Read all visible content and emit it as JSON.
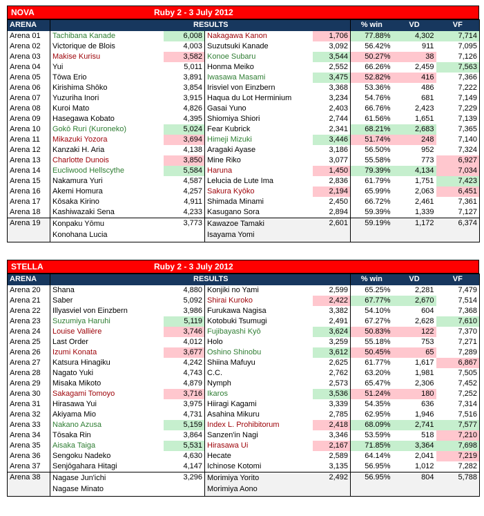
{
  "nova": {
    "label": "NOVA",
    "title": "Ruby 2 - 3 July 2012",
    "headers": {
      "arena": "ARENA",
      "results": "RESULTS",
      "win": "% win",
      "vd": "VD",
      "vf": "VF"
    },
    "rows": [
      {
        "arena": "Arena 01",
        "p1": "Tachibana Kanade",
        "s1": "6,008",
        "p2": "Nakagawa Kanon",
        "s2": "1,706",
        "win": "77.88%",
        "vd": "4,302",
        "vf": "7,714"
      },
      {
        "arena": "Arena 02",
        "p1": "Victorique de Blois",
        "s1": "4,003",
        "p2": "Suzutsuki Kanade",
        "s2": "3,092",
        "win": "56.42%",
        "vd": "911",
        "vf": "7,095"
      },
      {
        "arena": "Arena 03",
        "p1": "Makise Kurisu",
        "s1": "3,582",
        "p2": "Konoe Subaru",
        "s2": "3,544",
        "win": "50.27%",
        "vd": "38",
        "vf": "7,126"
      },
      {
        "arena": "Arena 04",
        "p1": "Yui",
        "s1": "5,011",
        "p2": "Honma Meiko",
        "s2": "2,552",
        "win": "66.26%",
        "vd": "2,459",
        "vf": "7,563"
      },
      {
        "arena": "Arena 05",
        "p1": "Tōwa Erio",
        "s1": "3,891",
        "p2": "Iwasawa Masami",
        "s2": "3,475",
        "win": "52.82%",
        "vd": "416",
        "vf": "7,366"
      },
      {
        "arena": "Arena 06",
        "p1": "Kirishima Shōko",
        "s1": "3,854",
        "p2": "Irisviel von Einzbern",
        "s2": "3,368",
        "win": "53.36%",
        "vd": "486",
        "vf": "7,222"
      },
      {
        "arena": "Arena 07",
        "p1": "Yuzuriha Inori",
        "s1": "3,915",
        "p2": "Haqua du Lot Herminium",
        "s2": "3,234",
        "win": "54.76%",
        "vd": "681",
        "vf": "7,149"
      },
      {
        "arena": "Arena 08",
        "p1": "Kuroi Mato",
        "s1": "4,826",
        "p2": "Gasai Yuno",
        "s2": "2,403",
        "win": "66.76%",
        "vd": "2,423",
        "vf": "7,229"
      },
      {
        "arena": "Arena 09",
        "p1": "Hasegawa Kobato",
        "s1": "4,395",
        "p2": "Shiomiya Shiori",
        "s2": "2,744",
        "win": "61.56%",
        "vd": "1,651",
        "vf": "7,139"
      },
      {
        "arena": "Arena 10",
        "p1": "Gokō Ruri (Kuroneko)",
        "s1": "5,024",
        "p2": "Fear Kubrick",
        "s2": "2,341",
        "win": "68.21%",
        "vd": "2,683",
        "vf": "7,365"
      },
      {
        "arena": "Arena 11",
        "p1": "Mikazuki Yozora",
        "s1": "3,694",
        "p2": "Himeji Mizuki",
        "s2": "3,446",
        "win": "51.74%",
        "vd": "248",
        "vf": "7,140"
      },
      {
        "arena": "Arena 12",
        "p1": "Kanzaki H. Aria",
        "s1": "4,138",
        "p2": "Aragaki Ayase",
        "s2": "3,186",
        "win": "56.50%",
        "vd": "952",
        "vf": "7,324"
      },
      {
        "arena": "Arena 13",
        "p1": "Charlotte Dunois",
        "s1": "3,850",
        "p2": "Mine Riko",
        "s2": "3,077",
        "win": "55.58%",
        "vd": "773",
        "vf": "6,927"
      },
      {
        "arena": "Arena 14",
        "p1": "Eucliwood Hellscythe",
        "s1": "5,584",
        "p2": "Haruna",
        "s2": "1,450",
        "win": "79.39%",
        "vd": "4,134",
        "vf": "7,034"
      },
      {
        "arena": "Arena 15",
        "p1": "Nakamura Yuri",
        "s1": "4,587",
        "p2": "Lelucia de Lute Ima",
        "s2": "2,836",
        "win": "61.79%",
        "vd": "1,751",
        "vf": "7,423"
      },
      {
        "arena": "Arena 16",
        "p1": "Akemi Homura",
        "s1": "4,257",
        "p2": "Sakura Kyōko",
        "s2": "2,194",
        "win": "65.99%",
        "vd": "2,063",
        "vf": "6,451"
      },
      {
        "arena": "Arena 17",
        "p1": "Kōsaka Kirino",
        "s1": "4,911",
        "p2": "Shimada Minami",
        "s2": "2,450",
        "win": "66.72%",
        "vd": "2,461",
        "vf": "7,361"
      },
      {
        "arena": "Arena 18",
        "p1": "Kashiwazaki Sena",
        "s1": "4,233",
        "p2": "Kasugano Sora",
        "s2": "2,894",
        "win": "59.39%",
        "vd": "1,339",
        "vf": "7,127"
      }
    ],
    "last": {
      "arena": "Arena 19",
      "p1a": "Konpaku Yōmu",
      "p1b": "Konohana Lucia",
      "s1": "3,773",
      "p2a": "Kawazoe Tamaki",
      "p2b": "Isayama Yomi",
      "s2": "2,601",
      "win": "59.19%",
      "vd": "1,172",
      "vf": "6,374"
    }
  },
  "stella": {
    "label": "STELLA",
    "title": "Ruby 2 - 3 July 2012",
    "headers": {
      "arena": "ARENA",
      "results": "RESULTS",
      "win": "% win",
      "vd": "VD",
      "vf": "VF"
    },
    "rows": [
      {
        "arena": "Arena 20",
        "p1": "Shana",
        "s1": "4,880",
        "p2": "Konjiki no Yami",
        "s2": "2,599",
        "win": "65.25%",
        "vd": "2,281",
        "vf": "7,479"
      },
      {
        "arena": "Arena 21",
        "p1": "Saber",
        "s1": "5,092",
        "p2": "Shirai Kuroko",
        "s2": "2,422",
        "win": "67.77%",
        "vd": "2,670",
        "vf": "7,514"
      },
      {
        "arena": "Arena 22",
        "p1": "Illyasviel von Einzbern",
        "s1": "3,986",
        "p2": "Furukawa Nagisa",
        "s2": "3,382",
        "win": "54.10%",
        "vd": "604",
        "vf": "7,368"
      },
      {
        "arena": "Arena 23",
        "p1": "Suzumiya Haruhi",
        "s1": "5,119",
        "p2": "Kotobuki Tsumugi",
        "s2": "2,491",
        "win": "67.27%",
        "vd": "2,628",
        "vf": "7,610"
      },
      {
        "arena": "Arena 24",
        "p1": "Louise Vallière",
        "s1": "3,746",
        "p2": "Fujibayashi Kyō",
        "s2": "3,624",
        "win": "50.83%",
        "vd": "122",
        "vf": "7,370"
      },
      {
        "arena": "Arena 25",
        "p1": "Last Order",
        "s1": "4,012",
        "p2": "Holo",
        "s2": "3,259",
        "win": "55.18%",
        "vd": "753",
        "vf": "7,271"
      },
      {
        "arena": "Arena 26",
        "p1": "Izumi Konata",
        "s1": "3,677",
        "p2": "Oshino Shinobu",
        "s2": "3,612",
        "win": "50.45%",
        "vd": "65",
        "vf": "7,289"
      },
      {
        "arena": "Arena 27",
        "p1": "Katsura Hinagiku",
        "s1": "4,242",
        "p2": "Shiina Mafuyu",
        "s2": "2,625",
        "win": "61.77%",
        "vd": "1,617",
        "vf": "6,867"
      },
      {
        "arena": "Arena 28",
        "p1": "Nagato Yuki",
        "s1": "4,743",
        "p2": "C.C.",
        "s2": "2,762",
        "win": "63.20%",
        "vd": "1,981",
        "vf": "7,505"
      },
      {
        "arena": "Arena 29",
        "p1": "Misaka Mikoto",
        "s1": "4,879",
        "p2": "Nymph",
        "s2": "2,573",
        "win": "65.47%",
        "vd": "2,306",
        "vf": "7,452"
      },
      {
        "arena": "Arena 30",
        "p1": "Sakagami Tomoyo",
        "s1": "3,716",
        "p2": "Ikaros",
        "s2": "3,536",
        "win": "51.24%",
        "vd": "180",
        "vf": "7,252"
      },
      {
        "arena": "Arena 31",
        "p1": "Hirasawa Yui",
        "s1": "3,975",
        "p2": "Hiiragi Kagami",
        "s2": "3,339",
        "win": "54.35%",
        "vd": "636",
        "vf": "7,314"
      },
      {
        "arena": "Arena 32",
        "p1": "Akiyama Mio",
        "s1": "4,731",
        "p2": "Asahina Mikuru",
        "s2": "2,785",
        "win": "62.95%",
        "vd": "1,946",
        "vf": "7,516"
      },
      {
        "arena": "Arena 33",
        "p1": "Nakano Azusa",
        "s1": "5,159",
        "p2": "Index L. Prohibitorum",
        "s2": "2,418",
        "win": "68.09%",
        "vd": "2,741",
        "vf": "7,577"
      },
      {
        "arena": "Arena 34",
        "p1": "Tōsaka Rin",
        "s1": "3,864",
        "p2": "Sanzen'in Nagi",
        "s2": "3,346",
        "win": "53.59%",
        "vd": "518",
        "vf": "7,210"
      },
      {
        "arena": "Arena 35",
        "p1": "Aisaka Taiga",
        "s1": "5,531",
        "p2": "Hirasawa Ui",
        "s2": "2,167",
        "win": "71.85%",
        "vd": "3,364",
        "vf": "7,698"
      },
      {
        "arena": "Arena 36",
        "p1": "Sengoku Nadeko",
        "s1": "4,630",
        "p2": "Hecate",
        "s2": "2,589",
        "win": "64.14%",
        "vd": "2,041",
        "vf": "7,219"
      },
      {
        "arena": "Arena 37",
        "p1": "Senjōgahara Hitagi",
        "s1": "4,147",
        "p2": "Ichinose Kotomi",
        "s2": "3,135",
        "win": "56.95%",
        "vd": "1,012",
        "vf": "7,282"
      }
    ],
    "last": {
      "arena": "Arena 38",
      "p1a": "Nagase Jun'ichi",
      "p1b": "Nagase Minato",
      "s1": "3,296",
      "p2a": "Morimiya Yorito",
      "p2b": "Morimiya Aono",
      "s2": "2,492",
      "win": "56.95%",
      "vd": "804",
      "vf": "5,788"
    }
  },
  "styles": {
    "nova": [
      {
        "p1": "g",
        "p2": "r",
        "mid": "g",
        "vf": "g"
      },
      {},
      {
        "p1": "r",
        "p2": "g",
        "mid": "r"
      },
      {
        "vf": "g"
      },
      {
        "p2": "g",
        "mid": "r"
      },
      {},
      {},
      {},
      {},
      {
        "p1": "g",
        "mid": "g"
      },
      {
        "p1": "r",
        "p2": "g",
        "mid": "r"
      },
      {},
      {
        "p1": "r",
        "vf": "r"
      },
      {
        "p1": "g",
        "p2": "r",
        "mid": "g",
        "vf": "r"
      },
      {
        "vf": "g"
      },
      {
        "p2": "r",
        "vf": "r"
      },
      {},
      {}
    ],
    "stella": [
      {},
      {
        "p2": "r",
        "mid": "g"
      },
      {},
      {
        "p1": "g",
        "vf": "g"
      },
      {
        "p1": "r",
        "p2": "g",
        "mid": "r"
      },
      {},
      {
        "p1": "r",
        "p2": "g",
        "mid": "r"
      },
      {
        "vf": "r"
      },
      {},
      {},
      {
        "p1": "r",
        "p2": "g",
        "mid": "r"
      },
      {},
      {},
      {
        "p1": "g",
        "p2": "r",
        "mid": "g",
        "vf": "g"
      },
      {
        "vf": "r"
      },
      {
        "p1": "g",
        "p2": "r",
        "mid": "g",
        "vf": "g"
      },
      {
        "vf": "r"
      },
      {}
    ]
  }
}
